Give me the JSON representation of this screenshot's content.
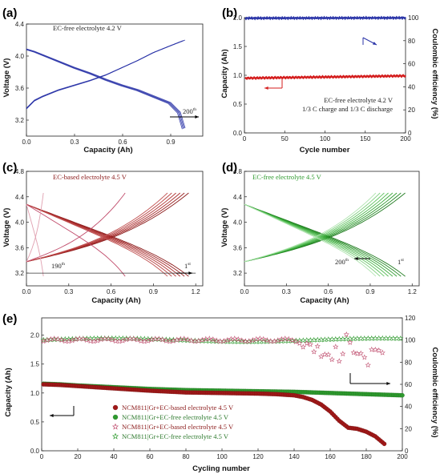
{
  "colors": {
    "blue": "#2b35a8",
    "red_dark": "#8b1a1a",
    "red": "#d41e1e",
    "green": "#2e9a2e",
    "green_light": "#5ec25e",
    "pink": "#c04a6a"
  },
  "chart_data": [
    {
      "id": "a",
      "type": "line",
      "panel_label": "(a)",
      "annotation": "EC-free electrolyte 4.2 V",
      "cycle_label_num": "200",
      "cycle_label_sup": "th",
      "xlabel": "Capacity (Ah)",
      "ylabel": "Voltage (V)",
      "xlim": [
        0,
        1.1
      ],
      "ylim": [
        3.0,
        4.4
      ],
      "xticks": [
        "0.0",
        "0.3",
        "0.6",
        "0.9"
      ],
      "xtick_vals": [
        0,
        0.3,
        0.6,
        0.9
      ],
      "yticks": [
        "3.2",
        "3.6",
        "4.0",
        "4.4"
      ],
      "ytick_vals": [
        3.2,
        3.6,
        4.0,
        4.4
      ],
      "series": [
        {
          "kind": "charge",
          "cap": 0.99,
          "x": [
            0,
            0.05,
            0.1,
            0.2,
            0.3,
            0.4,
            0.5,
            0.6,
            0.7,
            0.8,
            0.9,
            0.99
          ],
          "y": [
            3.35,
            3.45,
            3.5,
            3.58,
            3.64,
            3.7,
            3.77,
            3.86,
            3.95,
            4.05,
            4.13,
            4.2
          ]
        },
        {
          "kind": "discharge",
          "cap": 0.99,
          "x": [
            0,
            0.05,
            0.1,
            0.2,
            0.3,
            0.4,
            0.5,
            0.6,
            0.7,
            0.8,
            0.9,
            0.96,
            0.99
          ],
          "y": [
            4.09,
            4.06,
            4.02,
            3.94,
            3.86,
            3.79,
            3.71,
            3.64,
            3.58,
            3.5,
            3.42,
            3.3,
            3.1
          ]
        }
      ]
    },
    {
      "id": "b",
      "type": "scatter",
      "panel_label": "(b)",
      "annotation_lines": [
        "EC-free electrolyte 4.2 V",
        "1/3 C charge and 1/3 C discharge"
      ],
      "xlabel": "Cycle number",
      "ylabel": "Capacity (Ah)",
      "y2label": "Coulombic efficiency (%)",
      "xlim": [
        0,
        200
      ],
      "ylim": [
        0,
        2.0
      ],
      "y2lim": [
        0,
        100
      ],
      "xticks": [
        "0",
        "50",
        "100",
        "150",
        "200"
      ],
      "xtick_vals": [
        0,
        50,
        100,
        150,
        200
      ],
      "yticks": [
        "0.0",
        "0.5",
        "1.0",
        "1.5",
        "2.0"
      ],
      "ytick_vals": [
        0,
        0.5,
        1.0,
        1.5,
        2.0
      ],
      "y2ticks": [
        "0",
        "20",
        "40",
        "60",
        "80",
        "100"
      ],
      "y2tick_vals": [
        0,
        20,
        40,
        60,
        80,
        100
      ],
      "series": [
        {
          "name": "capacity",
          "axis": "left",
          "x_range": [
            1,
            200
          ],
          "y_start": 0.95,
          "y_end": 0.99
        },
        {
          "name": "coulombic efficiency",
          "axis": "right",
          "x_range": [
            1,
            200
          ],
          "y_start": 99.5,
          "y_end": 99.8
        }
      ]
    },
    {
      "id": "c",
      "type": "line",
      "panel_label": "(c)",
      "annotation": "EC-based electrolyte 4.5 V",
      "cycle_first_num": "1",
      "cycle_first_sup": "st",
      "cycle_last_num": "190",
      "cycle_last_sup": "th",
      "xlabel": "Capacity (Ah)",
      "ylabel": "Voltage (V)",
      "xlim": [
        0,
        1.25
      ],
      "ylim": [
        3.0,
        4.8
      ],
      "xticks": [
        "0.0",
        "0.3",
        "0.6",
        "0.9",
        "1.2"
      ],
      "xtick_vals": [
        0,
        0.3,
        0.6,
        0.9,
        1.2
      ],
      "yticks": [
        "3.2",
        "3.6",
        "4.0",
        "4.4",
        "4.8"
      ],
      "ytick_vals": [
        3.2,
        3.6,
        4.0,
        4.4,
        4.8
      ],
      "caps": [
        1.15,
        1.12,
        1.09,
        1.06,
        1.03,
        1.0,
        0.7,
        0.12
      ]
    },
    {
      "id": "d",
      "type": "line",
      "panel_label": "(d)",
      "annotation": "EC-free electrolyte  4.5 V",
      "cycle_first_num": "1",
      "cycle_first_sup": "st",
      "cycle_last_num": "200",
      "cycle_last_sup": "th",
      "xlabel": "Capacity (Ah)",
      "ylabel": "Voltage (V)",
      "xlim": [
        0,
        1.25
      ],
      "ylim": [
        3.0,
        4.8
      ],
      "xticks": [
        "0.0",
        "0.3",
        "0.6",
        "0.9",
        "1.2"
      ],
      "xtick_vals": [
        0,
        0.3,
        0.6,
        0.9,
        1.2
      ],
      "yticks": [
        "3.2",
        "3.6",
        "4.0",
        "4.4",
        "4.8"
      ],
      "ytick_vals": [
        3.2,
        3.6,
        4.0,
        4.4,
        4.8
      ],
      "caps": [
        1.15,
        1.12,
        1.09,
        1.06,
        1.03,
        1.0,
        0.97,
        0.94
      ]
    },
    {
      "id": "e",
      "type": "scatter",
      "panel_label": "(e)",
      "xlabel": "Cycling number",
      "ylabel": "Capacity (Ah)",
      "y2label": "Coulombic efficiency (%)",
      "xlim": [
        0,
        200
      ],
      "ylim": [
        0,
        2.3
      ],
      "y2lim": [
        0,
        120
      ],
      "xticks": [
        "0",
        "20",
        "40",
        "60",
        "80",
        "100",
        "120",
        "140",
        "160",
        "180",
        "200"
      ],
      "xtick_vals": [
        0,
        20,
        40,
        60,
        80,
        100,
        120,
        140,
        160,
        180,
        200
      ],
      "yticks": [
        "0.0",
        "0.5",
        "1.0",
        "1.5",
        "2.0"
      ],
      "ytick_vals": [
        0,
        0.5,
        1.0,
        1.5,
        2.0
      ],
      "y2ticks": [
        "0",
        "20",
        "40",
        "60",
        "80",
        "100",
        "120"
      ],
      "y2tick_vals": [
        0,
        20,
        40,
        60,
        80,
        100,
        120
      ],
      "legend": [
        "NCM811|Gr+EC-based electrolyte 4.5 V",
        "NCM811|Gr+EC-free electrolyte   4.5 V",
        "NCM811|Gr+EC-based electrolyte 4.5 V",
        "NCM811|Gr+EC-free electrolyte   4.5 V"
      ],
      "series": [
        {
          "name": "EC-based capacity",
          "axis": "left",
          "x": [
            1,
            10,
            20,
            40,
            60,
            80,
            100,
            120,
            130,
            140,
            145,
            150,
            155,
            160,
            165,
            170,
            175,
            180,
            185,
            190
          ],
          "y": [
            1.15,
            1.14,
            1.12,
            1.08,
            1.04,
            1.01,
            1.0,
            0.99,
            0.98,
            0.96,
            0.93,
            0.88,
            0.8,
            0.68,
            0.52,
            0.4,
            0.38,
            0.33,
            0.25,
            0.12
          ]
        },
        {
          "name": "EC-free capacity",
          "axis": "left",
          "x": [
            1,
            10,
            20,
            40,
            60,
            80,
            100,
            120,
            140,
            160,
            180,
            200
          ],
          "y": [
            1.16,
            1.15,
            1.13,
            1.1,
            1.07,
            1.05,
            1.04,
            1.03,
            1.02,
            1.0,
            0.98,
            0.96
          ]
        },
        {
          "name": "EC-based coulombic efficiency",
          "axis": "right",
          "x": [
            1,
            20,
            40,
            60,
            80,
            100,
            120,
            140,
            145,
            150,
            155,
            160,
            163,
            166,
            170,
            173,
            176,
            180,
            183,
            186,
            190
          ],
          "y": [
            100,
            100,
            100,
            100,
            100,
            100,
            100,
            100,
            97,
            94,
            88,
            84,
            90,
            80,
            110,
            85,
            92,
            78,
            88,
            95,
            82
          ]
        },
        {
          "name": "EC-free coulombic efficiency",
          "axis": "right",
          "x": [
            1,
            50,
            100,
            150,
            200
          ],
          "y": [
            100,
            100,
            100,
            100,
            100
          ]
        }
      ]
    }
  ]
}
